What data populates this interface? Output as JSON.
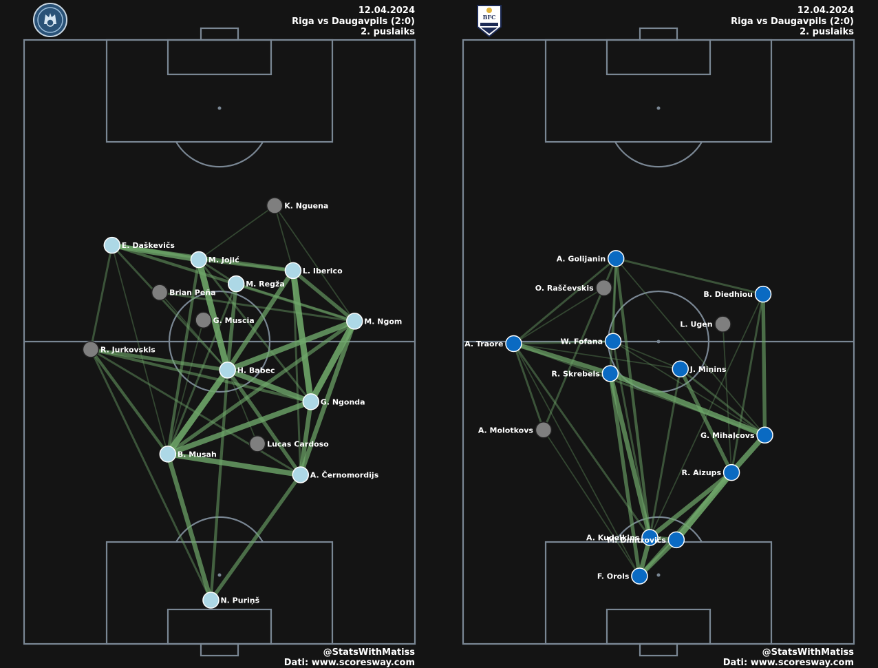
{
  "colors": {
    "background": "#141414",
    "pitch_lines": "#7a8794",
    "pass_link": "#6fa86a",
    "riga_node": "#add8e6",
    "daugavpils_node": "#0a6ac2",
    "sub_node": "#7f7f7f"
  },
  "panels": [
    {
      "team": "Riga",
      "logo": "riga-crest-icon",
      "header": {
        "date": "12.04.2024",
        "match": "Riga vs Daugavpils (2:0)",
        "half": "2. puslaiks"
      },
      "footer": {
        "credit": "@StatsWithMatiss",
        "source": "Dati: www.scoresway.com"
      }
    },
    {
      "team": "Daugavpils",
      "logo": "bfc-daugavpils-crest-icon",
      "header": {
        "date": "12.04.2024",
        "match": "Riga vs Daugavpils (2:0)",
        "half": "2. puslaiks"
      },
      "footer": {
        "credit": "@StatsWithMatiss",
        "source": "Dati: www.scoresway.com"
      }
    }
  ],
  "chart_data": [
    {
      "type": "pass_network",
      "team": "Riga",
      "pitch": {
        "x_range": [
          0,
          68
        ],
        "y_range": [
          0,
          105
        ],
        "attacking_direction": "up"
      },
      "players": [
        {
          "name": "K. Nguena",
          "x": 43.6,
          "y": 76.2,
          "sub": true
        },
        {
          "name": "E. Daškevičs",
          "x": 15.3,
          "y": 69.3,
          "sub": false
        },
        {
          "name": "M. Jojić",
          "x": 30.4,
          "y": 66.8,
          "sub": false
        },
        {
          "name": "L. Iberico",
          "x": 46.8,
          "y": 64.9,
          "sub": false
        },
        {
          "name": "M. Regža",
          "x": 36.9,
          "y": 62.6,
          "sub": false
        },
        {
          "name": "Brian Peña",
          "x": 23.6,
          "y": 61.1,
          "sub": true
        },
        {
          "name": "G. Muscia",
          "x": 31.2,
          "y": 56.3,
          "sub": true
        },
        {
          "name": "M. Ngom",
          "x": 57.5,
          "y": 56.1,
          "sub": false
        },
        {
          "name": "R. Jurkovskis",
          "x": 11.6,
          "y": 51.2,
          "sub": true
        },
        {
          "name": "H. Babec",
          "x": 35.4,
          "y": 47.6,
          "sub": false
        },
        {
          "name": "G. Ngonda",
          "x": 49.9,
          "y": 42.1,
          "sub": false
        },
        {
          "name": "Lucas Cardoso",
          "x": 40.6,
          "y": 34.8,
          "sub": true
        },
        {
          "name": "B. Musah",
          "x": 25.0,
          "y": 33.0,
          "sub": false
        },
        {
          "name": "A. Černomordijs",
          "x": 48.1,
          "y": 29.4,
          "sub": false
        },
        {
          "name": "N. Puriņš",
          "x": 32.5,
          "y": 7.6,
          "sub": false
        }
      ],
      "links": [
        {
          "from": "E. Daškevičs",
          "to": "M. Jojić",
          "weight": 6
        },
        {
          "from": "E. Daškevičs",
          "to": "L. Iberico",
          "weight": 4
        },
        {
          "from": "E. Daškevičs",
          "to": "M. Ngom",
          "weight": 3
        },
        {
          "from": "E. Daškevičs",
          "to": "H. Babec",
          "weight": 2
        },
        {
          "from": "E. Daškevičs",
          "to": "R. Jurkovskis",
          "weight": 2
        },
        {
          "from": "E. Daškevičs",
          "to": "B. Musah",
          "weight": 1
        },
        {
          "from": "M. Jojić",
          "to": "H. Babec",
          "weight": 7
        },
        {
          "from": "M. Jojić",
          "to": "L. Iberico",
          "weight": 3
        },
        {
          "from": "M. Jojić",
          "to": "M. Regža",
          "weight": 2
        },
        {
          "from": "M. Jojić",
          "to": "B. Musah",
          "weight": 3
        },
        {
          "from": "M. Jojić",
          "to": "G. Ngonda",
          "weight": 2
        },
        {
          "from": "M. Jojić",
          "to": "K. Nguena",
          "weight": 1
        },
        {
          "from": "L. Iberico",
          "to": "G. Ngonda",
          "weight": 7
        },
        {
          "from": "L. Iberico",
          "to": "M. Ngom",
          "weight": 4
        },
        {
          "from": "L. Iberico",
          "to": "H. Babec",
          "weight": 5
        },
        {
          "from": "L. Iberico",
          "to": "K. Nguena",
          "weight": 1
        },
        {
          "from": "L. Iberico",
          "to": "A. Černomordijs",
          "weight": 2
        },
        {
          "from": "M. Regža",
          "to": "H. Babec",
          "weight": 4
        },
        {
          "from": "M. Regža",
          "to": "M. Ngom",
          "weight": 2
        },
        {
          "from": "M. Regža",
          "to": "B. Musah",
          "weight": 2
        },
        {
          "from": "M. Ngom",
          "to": "H. Babec",
          "weight": 6
        },
        {
          "from": "M. Ngom",
          "to": "G. Ngonda",
          "weight": 7
        },
        {
          "from": "M. Ngom",
          "to": "A. Černomordijs",
          "weight": 5
        },
        {
          "from": "M. Ngom",
          "to": "B. Musah",
          "weight": 4
        },
        {
          "from": "M. Ngom",
          "to": "K. Nguena",
          "weight": 1
        },
        {
          "from": "R. Jurkovskis",
          "to": "H. Babec",
          "weight": 4
        },
        {
          "from": "R. Jurkovskis",
          "to": "G. Ngonda",
          "weight": 3
        },
        {
          "from": "R. Jurkovskis",
          "to": "B. Musah",
          "weight": 3
        },
        {
          "from": "R. Jurkovskis",
          "to": "N. Puriņš",
          "weight": 2
        },
        {
          "from": "R. Jurkovskis",
          "to": "A. Černomordijs",
          "weight": 2
        },
        {
          "from": "H. Babec",
          "to": "G. Ngonda",
          "weight": 6
        },
        {
          "from": "H. Babec",
          "to": "B. Musah",
          "weight": 7
        },
        {
          "from": "H. Babec",
          "to": "A. Černomordijs",
          "weight": 4
        },
        {
          "from": "H. Babec",
          "to": "N. Puriņš",
          "weight": 3
        },
        {
          "from": "G. Ngonda",
          "to": "A. Černomordijs",
          "weight": 5
        },
        {
          "from": "G. Ngonda",
          "to": "B. Musah",
          "weight": 6
        },
        {
          "from": "B. Musah",
          "to": "A. Černomordijs",
          "weight": 6
        },
        {
          "from": "B. Musah",
          "to": "N. Puriņš",
          "weight": 5
        },
        {
          "from": "A. Černomordijs",
          "to": "N. Puriņš",
          "weight": 4
        },
        {
          "from": "Brian Peña",
          "to": "M. Ngom",
          "weight": 2
        },
        {
          "from": "Brian Peña",
          "to": "H. Babec",
          "weight": 1
        },
        {
          "from": "G. Muscia",
          "to": "B. Musah",
          "weight": 1
        },
        {
          "from": "Lucas Cardoso",
          "to": "H. Babec",
          "weight": 1
        }
      ]
    },
    {
      "type": "pass_network",
      "team": "Daugavpils",
      "pitch": {
        "x_range": [
          0,
          68
        ],
        "y_range": [
          0,
          105
        ],
        "attacking_direction": "up"
      },
      "players": [
        {
          "name": "A. Golijanin",
          "x": 26.6,
          "y": 67.0,
          "sub": false
        },
        {
          "name": "O. Raščevskis",
          "x": 24.5,
          "y": 61.9,
          "sub": true
        },
        {
          "name": "B. Diedhiou",
          "x": 52.2,
          "y": 60.8,
          "sub": false
        },
        {
          "name": "L. Ugen",
          "x": 45.2,
          "y": 55.6,
          "sub": true
        },
        {
          "name": "A. Traore",
          "x": 8.8,
          "y": 52.2,
          "sub": false
        },
        {
          "name": "W. Fofana",
          "x": 26.1,
          "y": 52.6,
          "sub": false
        },
        {
          "name": "R. Skrebels",
          "x": 25.6,
          "y": 47.0,
          "sub": false
        },
        {
          "name": "J. Miņins",
          "x": 37.8,
          "y": 47.8,
          "sub": false
        },
        {
          "name": "A. Molotkovs",
          "x": 14.0,
          "y": 37.2,
          "sub": true
        },
        {
          "name": "G. Mihaļcovs",
          "x": 52.5,
          "y": 36.3,
          "sub": false
        },
        {
          "name": "R. Aizups",
          "x": 46.7,
          "y": 29.8,
          "sub": false
        },
        {
          "name": "A. Kudelkins",
          "x": 32.5,
          "y": 18.5,
          "sub": false
        },
        {
          "name": "M. Dmitrovičs",
          "x": 37.1,
          "y": 18.1,
          "sub": false
        },
        {
          "name": "F. Orols",
          "x": 30.7,
          "y": 11.8,
          "sub": false
        }
      ],
      "links": [
        {
          "from": "A. Traore",
          "to": "R. Skrebels",
          "weight": 5
        },
        {
          "from": "A. Traore",
          "to": "W. Fofana",
          "weight": 2
        },
        {
          "from": "A. Traore",
          "to": "A. Golijanin",
          "weight": 2
        },
        {
          "from": "A. Traore",
          "to": "G. Mihaļcovs",
          "weight": 2
        },
        {
          "from": "A. Traore",
          "to": "A. Kudelkins",
          "weight": 2
        },
        {
          "from": "A. Traore",
          "to": "F. Orols",
          "weight": 1
        },
        {
          "from": "A. Traore",
          "to": "J. Miņins",
          "weight": 1
        },
        {
          "from": "R. Skrebels",
          "to": "G. Mihaļcovs",
          "weight": 6
        },
        {
          "from": "R. Skrebels",
          "to": "A. Kudelkins",
          "weight": 5
        },
        {
          "from": "R. Skrebels",
          "to": "F. Orols",
          "weight": 4
        },
        {
          "from": "R. Skrebels",
          "to": "A. Golijanin",
          "weight": 2
        },
        {
          "from": "W. Fofana",
          "to": "A. Golijanin",
          "weight": 2
        },
        {
          "from": "W. Fofana",
          "to": "J. Miņins",
          "weight": 1
        },
        {
          "from": "W. Fofana",
          "to": "G. Mihaļcovs",
          "weight": 1
        },
        {
          "from": "W. Fofana",
          "to": "A. Kudelkins",
          "weight": 2
        },
        {
          "from": "J. Miņins",
          "to": "R. Aizups",
          "weight": 4
        },
        {
          "from": "J. Miņins",
          "to": "A. Kudelkins",
          "weight": 2
        },
        {
          "from": "J. Miņins",
          "to": "G. Mihaļcovs",
          "weight": 2
        },
        {
          "from": "G. Mihaļcovs",
          "to": "R. Aizups",
          "weight": 6
        },
        {
          "from": "G. Mihaļcovs",
          "to": "B. Diedhiou",
          "weight": 4
        },
        {
          "from": "G. Mihaļcovs",
          "to": "A. Golijanin",
          "weight": 1
        },
        {
          "from": "R. Aizups",
          "to": "M. Dmitrovičs",
          "weight": 7
        },
        {
          "from": "R. Aizups",
          "to": "A. Kudelkins",
          "weight": 5
        },
        {
          "from": "R. Aizups",
          "to": "F. Orols",
          "weight": 4
        },
        {
          "from": "B. Diedhiou",
          "to": "A. Golijanin",
          "weight": 2
        },
        {
          "from": "B. Diedhiou",
          "to": "R. Aizups",
          "weight": 2
        },
        {
          "from": "B. Diedhiou",
          "to": "A. Kudelkins",
          "weight": 1
        },
        {
          "from": "A. Golijanin",
          "to": "A. Kudelkins",
          "weight": 3
        },
        {
          "from": "A. Golijanin",
          "to": "A. Molotkovs",
          "weight": 2
        },
        {
          "from": "A. Kudelkins",
          "to": "M. Dmitrovičs",
          "weight": 4
        },
        {
          "from": "A. Kudelkins",
          "to": "F. Orols",
          "weight": 5
        },
        {
          "from": "M. Dmitrovičs",
          "to": "F. Orols",
          "weight": 5
        },
        {
          "from": "A. Molotkovs",
          "to": "A. Traore",
          "weight": 2
        },
        {
          "from": "A. Molotkovs",
          "to": "F. Orols",
          "weight": 1
        },
        {
          "from": "O. Raščevskis",
          "to": "A. Traore",
          "weight": 1
        },
        {
          "from": "L. Ugen",
          "to": "R. Aizups",
          "weight": 1
        }
      ]
    }
  ]
}
